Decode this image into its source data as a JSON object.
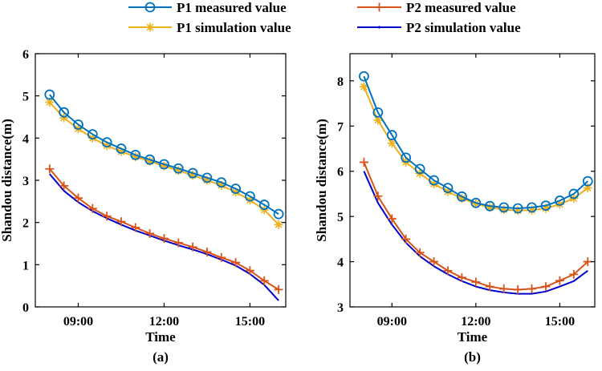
{
  "legend": [
    {
      "key": "p1m",
      "label": "P1 measured value",
      "color": "#0072BD",
      "marker": "circle"
    },
    {
      "key": "p2m",
      "label": "P2 measured value",
      "color": "#D95319",
      "marker": "plus"
    },
    {
      "key": "p1s",
      "label": "P1 simulation value",
      "color": "#EDB120",
      "marker": "star"
    },
    {
      "key": "p2s",
      "label": "P2 simulation value",
      "color": "#0000CC",
      "marker": "dot"
    }
  ],
  "chart_data": [
    {
      "type": "line",
      "caption": "(a)",
      "xlabel": "Time",
      "ylabel": "Shandou distance(m)",
      "xlim": [
        7.5,
        16.25
      ],
      "ylim": [
        0,
        6
      ],
      "xticks": [
        9,
        12,
        15
      ],
      "xtick_labels": [
        "09:00",
        "12:00",
        "15:00"
      ],
      "yticks": [
        0,
        1,
        2,
        3,
        4,
        5,
        6
      ],
      "ytick_labels": [
        "0",
        "1",
        "2",
        "3",
        "4",
        "5",
        "6"
      ],
      "x": [
        8,
        8.5,
        9,
        9.5,
        10,
        10.5,
        11,
        11.5,
        12,
        12.5,
        13,
        13.5,
        14,
        14.5,
        15,
        15.5,
        16
      ],
      "series": [
        {
          "key": "p1m",
          "name": "P1 measured value",
          "values": [
            5.03,
            4.61,
            4.32,
            4.09,
            3.9,
            3.75,
            3.6,
            3.49,
            3.38,
            3.28,
            3.17,
            3.06,
            2.95,
            2.8,
            2.62,
            2.42,
            2.2
          ]
        },
        {
          "key": "p1s",
          "name": "P1 simulation value",
          "values": [
            4.85,
            4.48,
            4.22,
            4.0,
            3.82,
            3.68,
            3.56,
            3.45,
            3.34,
            3.23,
            3.12,
            3.0,
            2.88,
            2.72,
            2.53,
            2.3,
            1.95
          ]
        },
        {
          "key": "p2m",
          "name": "P2 measured value",
          "values": [
            3.27,
            2.87,
            2.58,
            2.33,
            2.15,
            2.02,
            1.88,
            1.74,
            1.62,
            1.52,
            1.42,
            1.3,
            1.17,
            1.05,
            0.86,
            0.62,
            0.41
          ]
        },
        {
          "key": "p2s",
          "name": "P2 simulation value",
          "values": [
            3.15,
            2.75,
            2.48,
            2.27,
            2.1,
            1.95,
            1.81,
            1.69,
            1.57,
            1.46,
            1.36,
            1.25,
            1.12,
            0.98,
            0.78,
            0.52,
            0.15
          ]
        }
      ]
    },
    {
      "type": "line",
      "caption": "(b)",
      "xlabel": "Time",
      "ylabel": "Shandou distance(m)",
      "xlim": [
        7.5,
        16.25
      ],
      "ylim": [
        3,
        8.6
      ],
      "xticks": [
        9,
        12,
        15
      ],
      "xtick_labels": [
        "09:00",
        "12:00",
        "15:00"
      ],
      "yticks": [
        3,
        4,
        5,
        6,
        7,
        8
      ],
      "ytick_labels": [
        "3",
        "4",
        "5",
        "6",
        "7",
        "8"
      ],
      "x": [
        8,
        8.5,
        9,
        9.5,
        10,
        10.5,
        11,
        11.5,
        12,
        12.5,
        13,
        13.5,
        14,
        14.5,
        15,
        15.5,
        16
      ],
      "series": [
        {
          "key": "p1m",
          "name": "P1 measured value",
          "values": [
            8.1,
            7.3,
            6.8,
            6.3,
            6.05,
            5.8,
            5.63,
            5.44,
            5.3,
            5.23,
            5.2,
            5.18,
            5.2,
            5.24,
            5.35,
            5.5,
            5.78
          ]
        },
        {
          "key": "p1s",
          "name": "P1 simulation value",
          "values": [
            7.87,
            7.13,
            6.62,
            6.2,
            5.95,
            5.72,
            5.55,
            5.4,
            5.28,
            5.2,
            5.15,
            5.13,
            5.14,
            5.18,
            5.27,
            5.4,
            5.63
          ]
        },
        {
          "key": "p2m",
          "name": "P2 measured value",
          "values": [
            6.2,
            5.45,
            4.95,
            4.5,
            4.2,
            4.0,
            3.8,
            3.65,
            3.55,
            3.45,
            3.4,
            3.38,
            3.4,
            3.45,
            3.58,
            3.72,
            4.0
          ]
        },
        {
          "key": "p2s",
          "name": "P2 simulation value",
          "values": [
            6.0,
            5.3,
            4.82,
            4.42,
            4.12,
            3.9,
            3.72,
            3.57,
            3.45,
            3.37,
            3.32,
            3.29,
            3.29,
            3.34,
            3.45,
            3.57,
            3.8
          ]
        }
      ]
    }
  ]
}
